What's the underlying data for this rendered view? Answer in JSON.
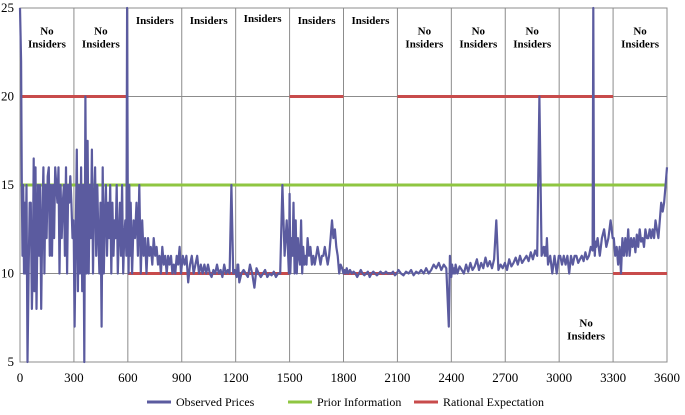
{
  "chart_data": {
    "type": "line",
    "title": "",
    "xlabel": "",
    "ylabel": "",
    "xlim": [
      0,
      3600
    ],
    "ylim": [
      5,
      25
    ],
    "x_ticks": [
      0,
      300,
      600,
      900,
      1200,
      1500,
      1800,
      2100,
      2400,
      2700,
      3000,
      3300,
      3600
    ],
    "y_ticks": [
      5,
      10,
      15,
      20,
      25
    ],
    "grid": true,
    "legend_position": "bottom",
    "colors": {
      "observed": "#5b5b9f",
      "prior": "#8fc641",
      "rational": "#c84b4b",
      "grid": "#8c8c8c"
    },
    "period_boundaries": [
      300,
      600,
      900,
      1200,
      1500,
      1800,
      2100,
      2400,
      2700,
      3000,
      3300
    ],
    "periods": [
      {
        "start": 0,
        "end": 300,
        "label": [
          "No",
          "Insiders"
        ],
        "label_y": 23.5
      },
      {
        "start": 300,
        "end": 600,
        "label": [
          "No",
          "Insiders"
        ],
        "label_y": 23.5
      },
      {
        "start": 600,
        "end": 900,
        "label": [
          "Insiders"
        ],
        "label_y": 24.1
      },
      {
        "start": 900,
        "end": 1200,
        "label": [
          "Insiders"
        ],
        "label_y": 24.1
      },
      {
        "start": 1200,
        "end": 1500,
        "label": [
          "Insiders"
        ],
        "label_y": 24.2
      },
      {
        "start": 1500,
        "end": 1800,
        "label": [
          "Insiders"
        ],
        "label_y": 24.1
      },
      {
        "start": 1800,
        "end": 2100,
        "label": [
          "Insiders"
        ],
        "label_y": 24.1
      },
      {
        "start": 2100,
        "end": 2400,
        "label": [
          "No",
          "Insiders"
        ],
        "label_y": 23.5
      },
      {
        "start": 2400,
        "end": 2700,
        "label": [
          "No",
          "Insiders"
        ],
        "label_y": 23.5
      },
      {
        "start": 2700,
        "end": 3000,
        "label": [
          "No",
          "Insiders"
        ],
        "label_y": 23.5
      },
      {
        "start": 3000,
        "end": 3300,
        "label": [
          "No",
          "Insiders"
        ],
        "label_y": 7.0
      },
      {
        "start": 3300,
        "end": 3600,
        "label": [
          "No",
          "Insiders"
        ],
        "label_y": 23.5
      }
    ],
    "series": [
      {
        "name": "Observed Prices",
        "x": [
          0,
          6,
          10,
          14,
          18,
          22,
          26,
          30,
          36,
          42,
          48,
          54,
          60,
          66,
          72,
          76,
          80,
          86,
          92,
          100,
          106,
          112,
          118,
          124,
          130,
          136,
          142,
          148,
          154,
          160,
          166,
          172,
          178,
          184,
          190,
          196,
          202,
          208,
          214,
          220,
          226,
          232,
          238,
          244,
          250,
          256,
          262,
          268,
          274,
          280,
          286,
          292,
          298,
          304,
          310,
          316,
          322,
          328,
          334,
          340,
          346,
          352,
          358,
          364,
          370,
          376,
          382,
          388,
          394,
          400,
          406,
          412,
          418,
          424,
          430,
          436,
          442,
          448,
          454,
          460,
          466,
          472,
          478,
          484,
          490,
          496,
          502,
          508,
          514,
          520,
          526,
          532,
          538,
          544,
          550,
          556,
          562,
          568,
          574,
          580,
          586,
          592,
          596,
          600,
          604,
          608,
          612,
          616,
          624,
          632,
          640,
          648,
          656,
          664,
          672,
          680,
          688,
          696,
          704,
          712,
          720,
          728,
          736,
          744,
          752,
          760,
          768,
          776,
          784,
          792,
          800,
          808,
          816,
          824,
          832,
          840,
          848,
          856,
          864,
          872,
          880,
          888,
          896,
          906,
          916,
          926,
          936,
          946,
          956,
          966,
          976,
          986,
          996,
          1006,
          1016,
          1026,
          1036,
          1046,
          1056,
          1066,
          1076,
          1086,
          1096,
          1106,
          1116,
          1126,
          1136,
          1146,
          1156,
          1166,
          1176,
          1186,
          1196,
          1206,
          1210,
          1212,
          1214,
          1220,
          1232,
          1244,
          1256,
          1268,
          1280,
          1292,
          1304,
          1316,
          1328,
          1340,
          1352,
          1364,
          1376,
          1388,
          1400,
          1412,
          1424,
          1436,
          1448,
          1460,
          1472,
          1484,
          1496,
          1500,
          1504,
          1510,
          1516,
          1522,
          1528,
          1534,
          1540,
          1546,
          1552,
          1558,
          1564,
          1570,
          1576,
          1582,
          1588,
          1594,
          1600,
          1608,
          1616,
          1624,
          1632,
          1640,
          1648,
          1656,
          1664,
          1672,
          1680,
          1688,
          1696,
          1704,
          1712,
          1720,
          1728,
          1736,
          1744,
          1752,
          1760,
          1768,
          1776,
          1784,
          1792,
          1800,
          1806,
          1812,
          1818,
          1826,
          1836,
          1846,
          1856,
          1866,
          1876,
          1886,
          1896,
          1906,
          1916,
          1926,
          1936,
          1946,
          1956,
          1966,
          1976,
          1986,
          1996,
          2006,
          2016,
          2026,
          2036,
          2046,
          2056,
          2066,
          2076,
          2086,
          2096,
          2106,
          2120,
          2134,
          2148,
          2162,
          2176,
          2190,
          2204,
          2218,
          2232,
          2246,
          2260,
          2274,
          2288,
          2302,
          2316,
          2330,
          2344,
          2358,
          2372,
          2386,
          2392,
          2396,
          2400,
          2404,
          2410,
          2416,
          2420,
          2424,
          2434,
          2446,
          2458,
          2470,
          2482,
          2494,
          2506,
          2518,
          2530,
          2542,
          2554,
          2566,
          2578,
          2590,
          2602,
          2614,
          2626,
          2638,
          2650,
          2662,
          2674,
          2686,
          2698,
          2710,
          2722,
          2734,
          2746,
          2758,
          2770,
          2782,
          2794,
          2806,
          2818,
          2830,
          2842,
          2854,
          2866,
          2878,
          2890,
          2902,
          2914,
          2920,
          2924,
          2928,
          2932,
          2938,
          2950,
          2962,
          2974,
          2986,
          2998,
          3006,
          3016,
          3026,
          3036,
          3046,
          3056,
          3066,
          3076,
          3086,
          3096,
          3106,
          3116,
          3126,
          3136,
          3146,
          3156,
          3166,
          3176,
          3186,
          3190,
          3194,
          3198,
          3202,
          3206,
          3214,
          3226,
          3238,
          3250,
          3262,
          3274,
          3286,
          3298,
          3304,
          3312,
          3320,
          3328,
          3336,
          3344,
          3352,
          3360,
          3368,
          3376,
          3384,
          3392,
          3400,
          3408,
          3416,
          3424,
          3432,
          3440,
          3448,
          3456,
          3464,
          3472,
          3480,
          3488,
          3496,
          3504,
          3512,
          3520,
          3528,
          3536,
          3544,
          3552,
          3560,
          3568,
          3576,
          3584,
          3592,
          3600
        ],
        "y": [
          25,
          22,
          15,
          11,
          15,
          10,
          14,
          10,
          15,
          5,
          10,
          14,
          14,
          8,
          11,
          16.5,
          9,
          16,
          8,
          15,
          11,
          15,
          8,
          13,
          16,
          10,
          15,
          12,
          15.5,
          16,
          11,
          15,
          11,
          15,
          12,
          16,
          15,
          14,
          16,
          10,
          15,
          12,
          14,
          15,
          11,
          16,
          10,
          15,
          14,
          15.5,
          14,
          12,
          13,
          7,
          12,
          17,
          9,
          15,
          10,
          16,
          9,
          15,
          5,
          20,
          10,
          17.5,
          10,
          15,
          12,
          17,
          10,
          14,
          16,
          11,
          15,
          12,
          10,
          14,
          7,
          16,
          10,
          13,
          15,
          11,
          14,
          12,
          15,
          10,
          14,
          11,
          13,
          12,
          15,
          10,
          12,
          14,
          11,
          15,
          10,
          12,
          13,
          11,
          25,
          14,
          10,
          15,
          11,
          14,
          10,
          13,
          12,
          14,
          11,
          15,
          10,
          13,
          11,
          12,
          10,
          12,
          11,
          11.5,
          10.5,
          12,
          11,
          11.5,
          10.5,
          11,
          10,
          11.5,
          10.5,
          11,
          10,
          11,
          10.5,
          11,
          10,
          10.5,
          10,
          11,
          10.5,
          11.5,
          10,
          11,
          10.5,
          11,
          9.5,
          10.5,
          11,
          10,
          10.5,
          11,
          10,
          10.5,
          10,
          10.5,
          10,
          10.5,
          10,
          9.8,
          10.2,
          10,
          10.5,
          10,
          10.2,
          9.8,
          10.5,
          10,
          10.2,
          10,
          15,
          10,
          10.2,
          9.8,
          10.5,
          10,
          10.5,
          9.5,
          10,
          10.2,
          10,
          9.8,
          10.5,
          10,
          9.2,
          10.3,
          10,
          9.8,
          10,
          10.2,
          9.8,
          10,
          9.9,
          10.1,
          9.8,
          10,
          10,
          15,
          11,
          13,
          10,
          14.5,
          10,
          12,
          11,
          14,
          10,
          13,
          10,
          12,
          11,
          10.5,
          13,
          10,
          11.5,
          10.5,
          11,
          10.5,
          12,
          11,
          11.5,
          10.5,
          11,
          10.5,
          11,
          11.5,
          11,
          10.5,
          11,
          11,
          11.5,
          11,
          10.5,
          11,
          12,
          13,
          12,
          12.5,
          11.5,
          11,
          10,
          10.5,
          10.3,
          10,
          10.2,
          10,
          10.3,
          10,
          10.2,
          10,
          10.1,
          10,
          9.8,
          10,
          10.2,
          10,
          9.9,
          10,
          10.1,
          9.8,
          10,
          10.1,
          10,
          9.9,
          10,
          10.1,
          10,
          10,
          10.1,
          10,
          10,
          10,
          10.1,
          9.9,
          10,
          10.2,
          10,
          9.9,
          10.1,
          10,
          10.2,
          9.9,
          10.1,
          10,
          10.2,
          10,
          10.3,
          10,
          10.2,
          10.5,
          10.3,
          10.6,
          10.2,
          10.5,
          10.3,
          7,
          11,
          10.5,
          9.8,
          10.5,
          10,
          10.3,
          10,
          10.5,
          10,
          10.4,
          10.2,
          10,
          10.5,
          10.1,
          10.6,
          10.2,
          10.4,
          10.8,
          10.2,
          10.6,
          10.3,
          10.9,
          10.4,
          10.7,
          10.3,
          10.8,
          13,
          10.2,
          10.5,
          10.3,
          10.6,
          10.2,
          10.8,
          10.4,
          10.6,
          10.9,
          10.5,
          11,
          10.6,
          10.8,
          11,
          10.7,
          11.2,
          10.8,
          11.3,
          11,
          20,
          11,
          11.5,
          11,
          11.5,
          11,
          12,
          10.5,
          11,
          10,
          11,
          10,
          11,
          11,
          10.5,
          11,
          10.5,
          11,
          10,
          11,
          10.5,
          11,
          11,
          10.6,
          10.8,
          11,
          10.7,
          11.2,
          10.8,
          11,
          11.5,
          11.3,
          25,
          12,
          11,
          11.8,
          11.5,
          12,
          11,
          12,
          12.5,
          11.5,
          12,
          13,
          12,
          12,
          11,
          11.5,
          10.5,
          11.5,
          10,
          12,
          11,
          12,
          11,
          12.5,
          11,
          12,
          11.5,
          12,
          11.2,
          12.2,
          11.5,
          12.5,
          11.8,
          12,
          11.5,
          12.5,
          12,
          12,
          12.5,
          12,
          12.5,
          12,
          13,
          12.5,
          12,
          13,
          14,
          13.5,
          14,
          15,
          16
        ]
      },
      {
        "name": "Prior Information",
        "segments": [
          [
            0,
            3600,
            15
          ]
        ]
      },
      {
        "name": "Rational Expectation",
        "segments": [
          [
            0,
            600,
            20
          ],
          [
            600,
            1500,
            10
          ],
          [
            1500,
            1800,
            20
          ],
          [
            1800,
            2100,
            10
          ],
          [
            2100,
            3300,
            20
          ],
          [
            3300,
            3600,
            10
          ]
        ]
      }
    ]
  }
}
